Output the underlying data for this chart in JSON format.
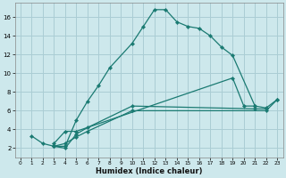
{
  "xlabel": "Humidex (Indice chaleur)",
  "background_color": "#cde8ec",
  "grid_color": "#aacdd4",
  "line_color": "#1a7a72",
  "xlim": [
    -0.5,
    23.5
  ],
  "ylim": [
    1.0,
    17.5
  ],
  "xticks": [
    0,
    1,
    2,
    3,
    4,
    5,
    6,
    7,
    8,
    9,
    10,
    11,
    12,
    13,
    14,
    15,
    16,
    17,
    18,
    19,
    20,
    21,
    22,
    23
  ],
  "yticks": [
    2,
    4,
    6,
    8,
    10,
    12,
    14,
    16
  ],
  "series": [
    {
      "x": [
        1,
        2,
        3,
        4,
        5,
        6,
        7,
        8,
        10,
        11,
        12,
        13,
        14,
        15,
        16,
        17,
        18,
        19,
        21,
        22,
        23
      ],
      "y": [
        3.3,
        2.5,
        2.2,
        2.2,
        5.0,
        7.0,
        8.7,
        10.6,
        13.2,
        15.0,
        16.8,
        16.8,
        15.5,
        15.0,
        14.8,
        14.0,
        12.8,
        11.9,
        6.5,
        6.3,
        7.2
      ]
    },
    {
      "x": [
        3,
        4,
        5,
        19,
        20,
        21
      ],
      "y": [
        2.5,
        3.8,
        3.8,
        9.5,
        6.5,
        6.5
      ]
    },
    {
      "x": [
        3,
        4,
        5,
        6,
        10,
        21,
        22
      ],
      "y": [
        2.2,
        2.0,
        3.5,
        4.2,
        6.5,
        6.2,
        6.2
      ]
    },
    {
      "x": [
        3,
        4,
        5,
        6,
        10,
        22,
        23
      ],
      "y": [
        2.2,
        2.5,
        3.2,
        3.8,
        6.0,
        6.0,
        7.2
      ]
    }
  ]
}
